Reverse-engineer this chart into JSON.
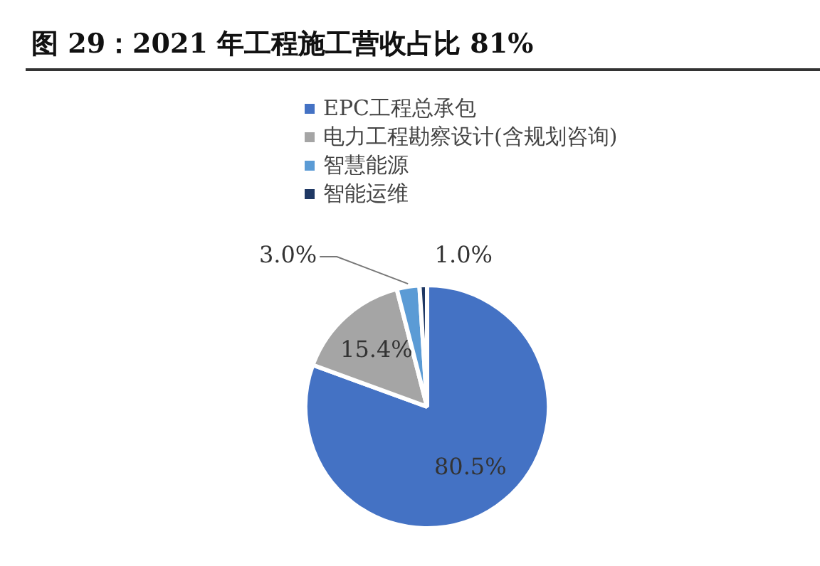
{
  "chart_data": {
    "type": "pie",
    "title": "图 29：2021 年工程施工营收占比 81%",
    "categories": [
      "EPC工程总承包",
      "电力工程勘察设计(含规划咨询)",
      "智慧能源",
      "智能运维"
    ],
    "values": [
      80.5,
      15.4,
      3.0,
      1.0
    ],
    "colors": [
      "#4472c4",
      "#a5a5a5",
      "#5b9bd5",
      "#1f3864"
    ],
    "value_labels": [
      "80.5%",
      "15.4%",
      "3.0%",
      "1.0%"
    ],
    "legend": "top"
  }
}
